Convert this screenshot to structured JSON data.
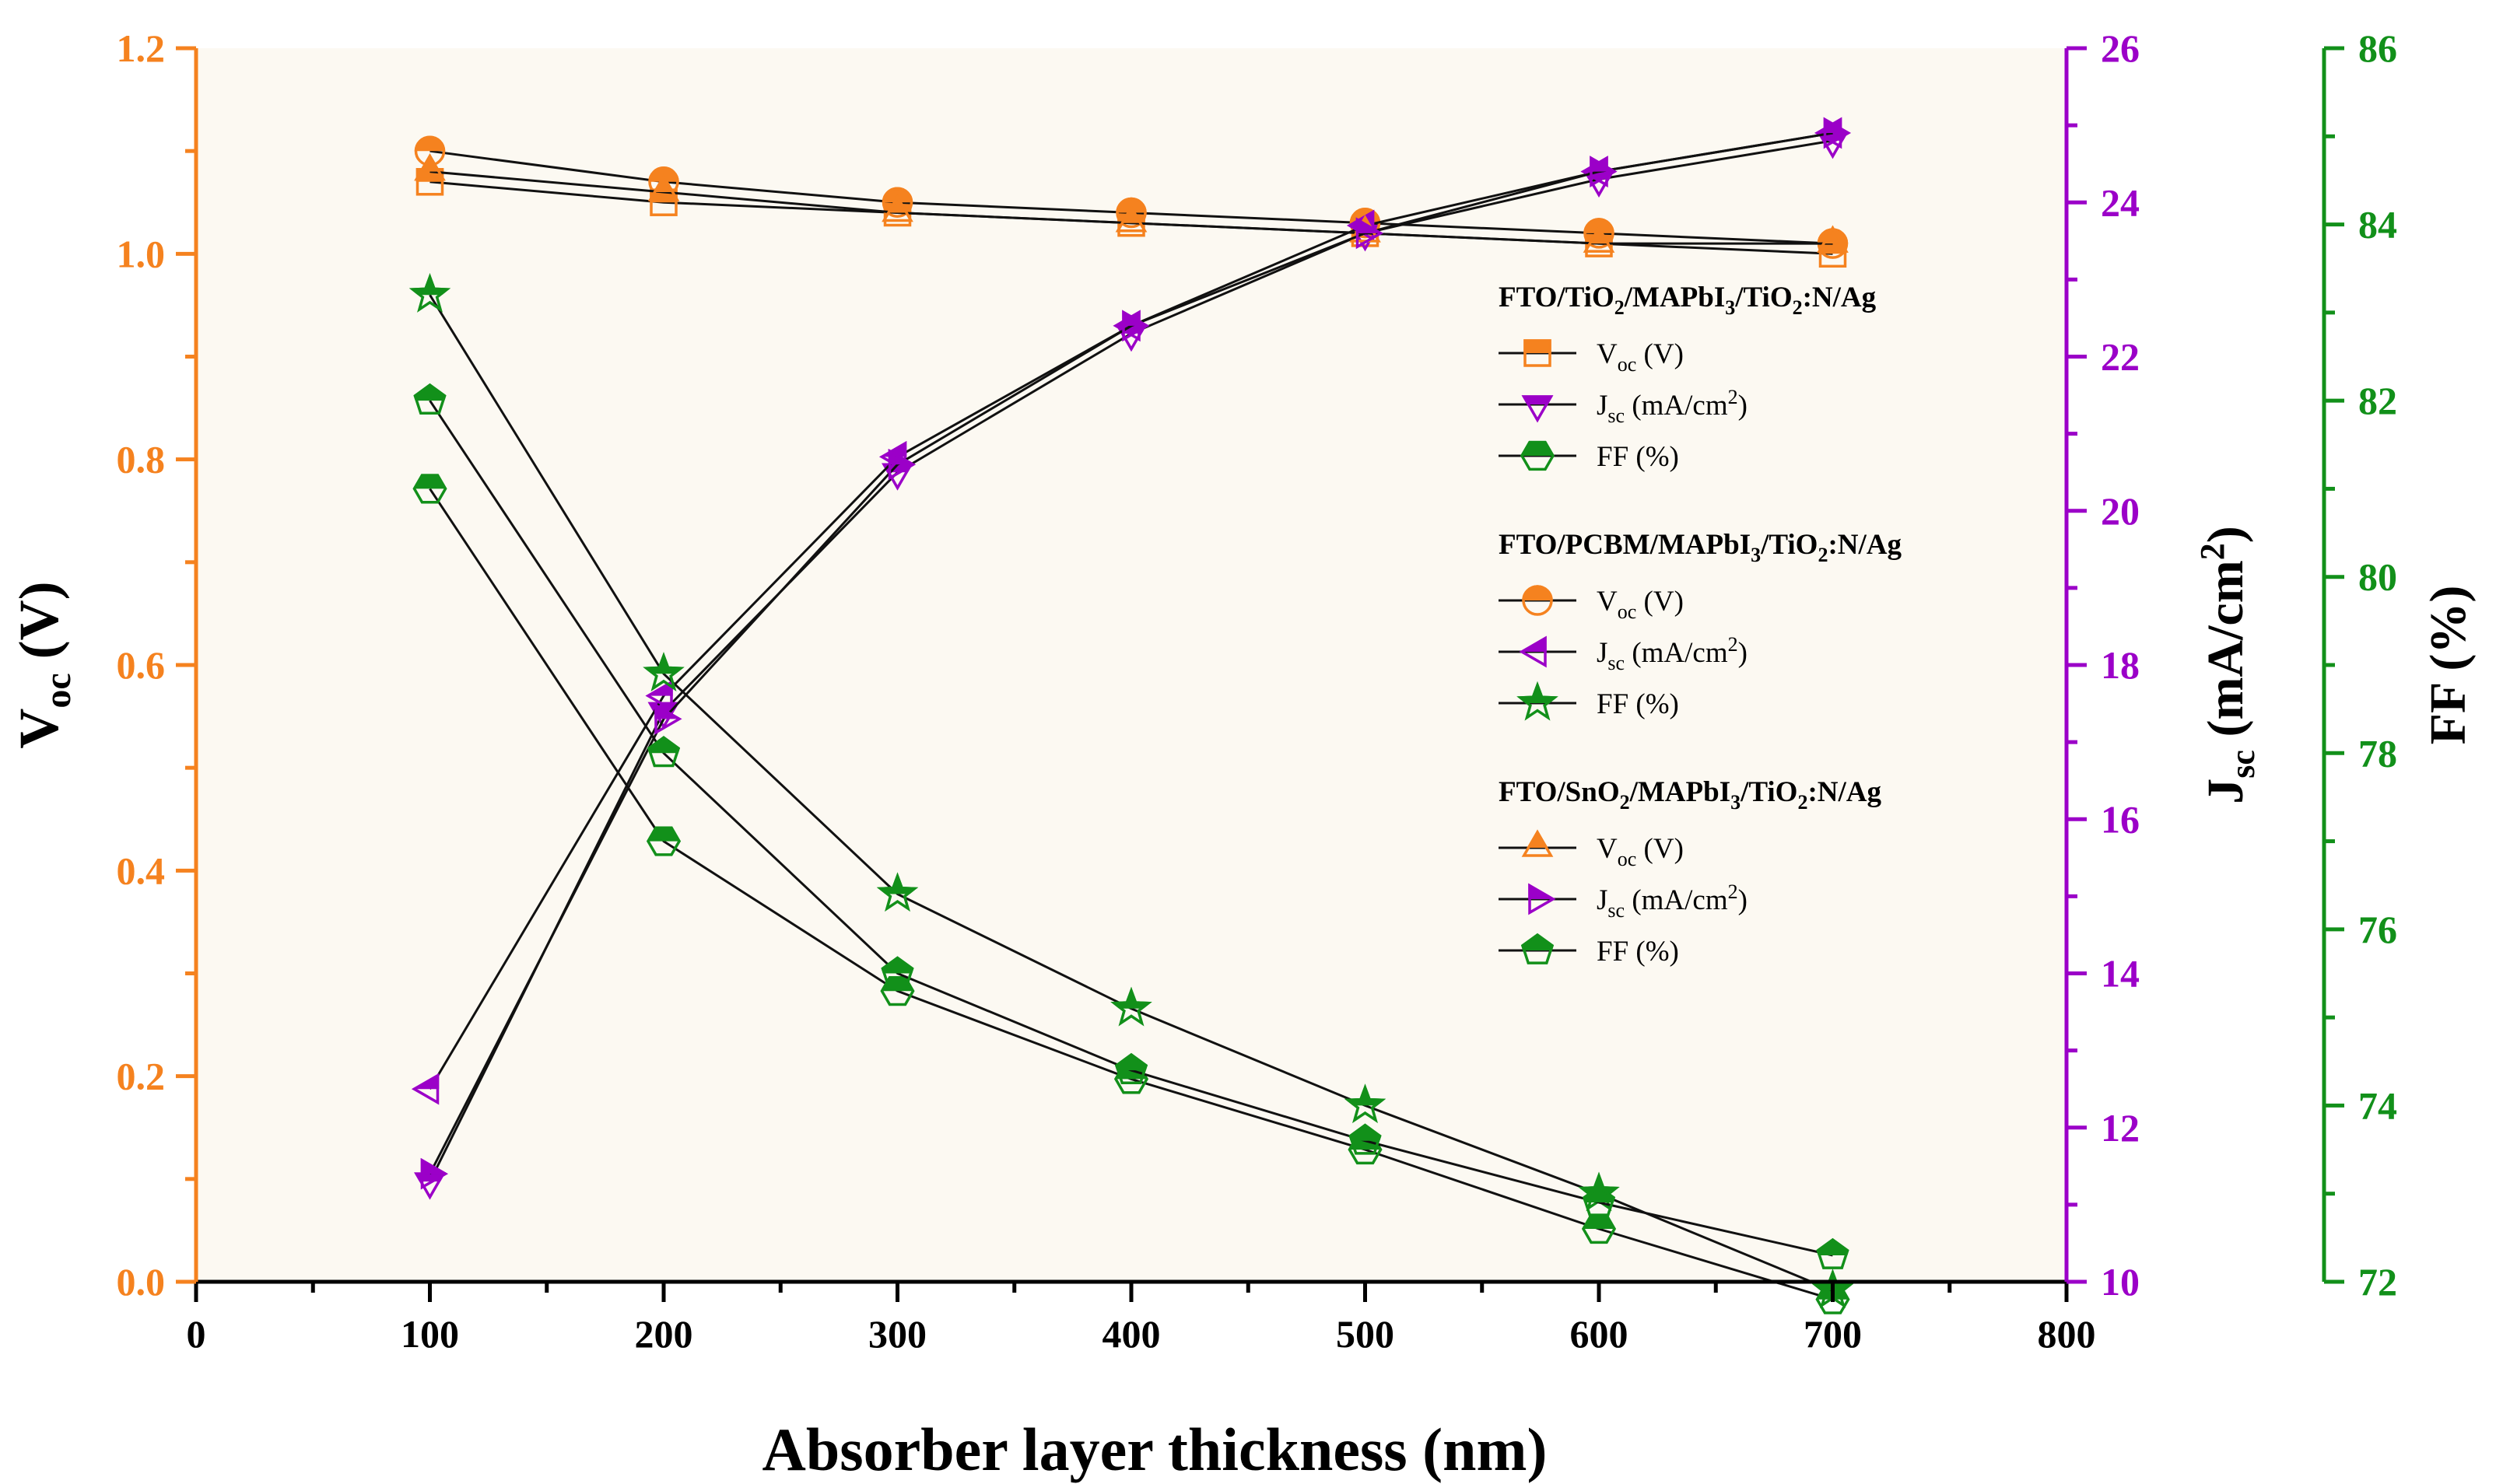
{
  "chart_data": {
    "type": "line",
    "x_label": "Absorber layer thickness (nm)",
    "xlim": [
      0,
      800
    ],
    "x_ticks": [
      "0",
      "100",
      "200",
      "300",
      "400",
      "500",
      "600",
      "700",
      "800"
    ],
    "y_axes": {
      "voc": {
        "label_main": "V",
        "label_sub": "oc",
        "label_tail": " (V)",
        "range": [
          0,
          1.2
        ],
        "ticks": [
          "0.0",
          "0.2",
          "0.4",
          "0.6",
          "0.8",
          "1.0",
          "1.2"
        ],
        "color": "#F5821F"
      },
      "jsc": {
        "label_main": "J",
        "label_sub": "sc",
        "label_tail": " (mA/cm",
        "label_sup": "2",
        "label_end": ")",
        "range": [
          10,
          26
        ],
        "ticks": [
          "10",
          "12",
          "14",
          "16",
          "18",
          "20",
          "22",
          "24",
          "26"
        ],
        "color": "#9B00C8"
      },
      "ff": {
        "label": "FF (%)",
        "range": [
          72,
          86
        ],
        "ticks": [
          "72",
          "74",
          "76",
          "78",
          "80",
          "82",
          "84",
          "86"
        ],
        "color": "#12901A"
      }
    },
    "x": [
      100,
      200,
      300,
      400,
      500,
      600,
      700
    ],
    "groups": [
      {
        "title_parts": [
          [
            "FTO/TiO",
            ""
          ],
          [
            "2",
            "sub"
          ],
          [
            "/MAPbI",
            ""
          ],
          [
            "3",
            "sub"
          ],
          [
            "/TiO",
            ""
          ],
          [
            "2",
            "sub"
          ],
          [
            ":N/Ag",
            ""
          ]
        ],
        "series": [
          {
            "name": "Voc (V)",
            "label_main": "V",
            "label_sub": "oc",
            "label_tail": " (V)",
            "axis": "voc",
            "marker": "square",
            "values": [
              1.07,
              1.05,
              1.04,
              1.03,
              1.02,
              1.01,
              1.0
            ]
          },
          {
            "name": "Jsc (mA/cm2)",
            "label_main": "J",
            "label_sub": "sc",
            "label_tail": " (mA/cm",
            "label_sup": "2",
            "label_end": ")",
            "axis": "jsc",
            "marker": "tri-down",
            "values": [
              11.3,
              17.4,
              20.5,
              22.3,
              23.6,
              24.3,
              24.8
            ]
          },
          {
            "name": "FF (%)",
            "label_main": "FF (%)",
            "axis": "ff",
            "marker": "hexagon",
            "values": [
              81.0,
              77.0,
              75.3,
              74.3,
              73.5,
              72.6,
              71.8
            ]
          }
        ]
      },
      {
        "title_parts": [
          [
            "FTO/PCBM/MAPbI",
            ""
          ],
          [
            "3",
            "sub"
          ],
          [
            "/TiO",
            ""
          ],
          [
            "2",
            "sub"
          ],
          [
            ":N/Ag",
            ""
          ]
        ],
        "series": [
          {
            "name": "Voc (V)",
            "label_main": "V",
            "label_sub": "oc",
            "label_tail": " (V)",
            "axis": "voc",
            "marker": "circle",
            "values": [
              1.1,
              1.07,
              1.05,
              1.04,
              1.03,
              1.02,
              1.01
            ]
          },
          {
            "name": "Jsc (mA/cm2)",
            "label_main": "J",
            "label_sub": "sc",
            "label_tail": " (mA/cm",
            "label_sup": "2",
            "label_end": ")",
            "axis": "jsc",
            "marker": "tri-left",
            "values": [
              12.5,
              17.6,
              20.7,
              22.4,
              23.7,
              24.4,
              24.9
            ]
          },
          {
            "name": "FF (%)",
            "label_main": "FF (%)",
            "axis": "ff",
            "marker": "star",
            "values": [
              83.2,
              78.9,
              76.4,
              75.1,
              74.0,
              73.0,
              71.9
            ]
          }
        ]
      },
      {
        "title_parts": [
          [
            "FTO/SnO",
            ""
          ],
          [
            "2",
            "sub"
          ],
          [
            "/MAPbI",
            ""
          ],
          [
            "3",
            "sub"
          ],
          [
            "/TiO",
            ""
          ],
          [
            "2",
            "sub"
          ],
          [
            ":N/Ag",
            ""
          ]
        ],
        "series": [
          {
            "name": "Voc (V)",
            "label_main": "V",
            "label_sub": "oc",
            "label_tail": " (V)",
            "axis": "voc",
            "marker": "triangle",
            "values": [
              1.08,
              1.06,
              1.04,
              1.03,
              1.02,
              1.01,
              1.01
            ]
          },
          {
            "name": "Jsc (mA/cm2)",
            "label_main": "J",
            "label_sub": "sc",
            "label_tail": " (mA/cm",
            "label_sup": "2",
            "label_end": ")",
            "axis": "jsc",
            "marker": "tri-right",
            "values": [
              11.4,
              17.3,
              20.6,
              22.4,
              23.6,
              24.4,
              24.9
            ]
          },
          {
            "name": "FF (%)",
            "label_main": "FF (%)",
            "axis": "ff",
            "marker": "pentagon",
            "values": [
              82.0,
              78.0,
              75.5,
              74.4,
              73.6,
              72.9,
              72.3
            ]
          }
        ]
      }
    ]
  }
}
